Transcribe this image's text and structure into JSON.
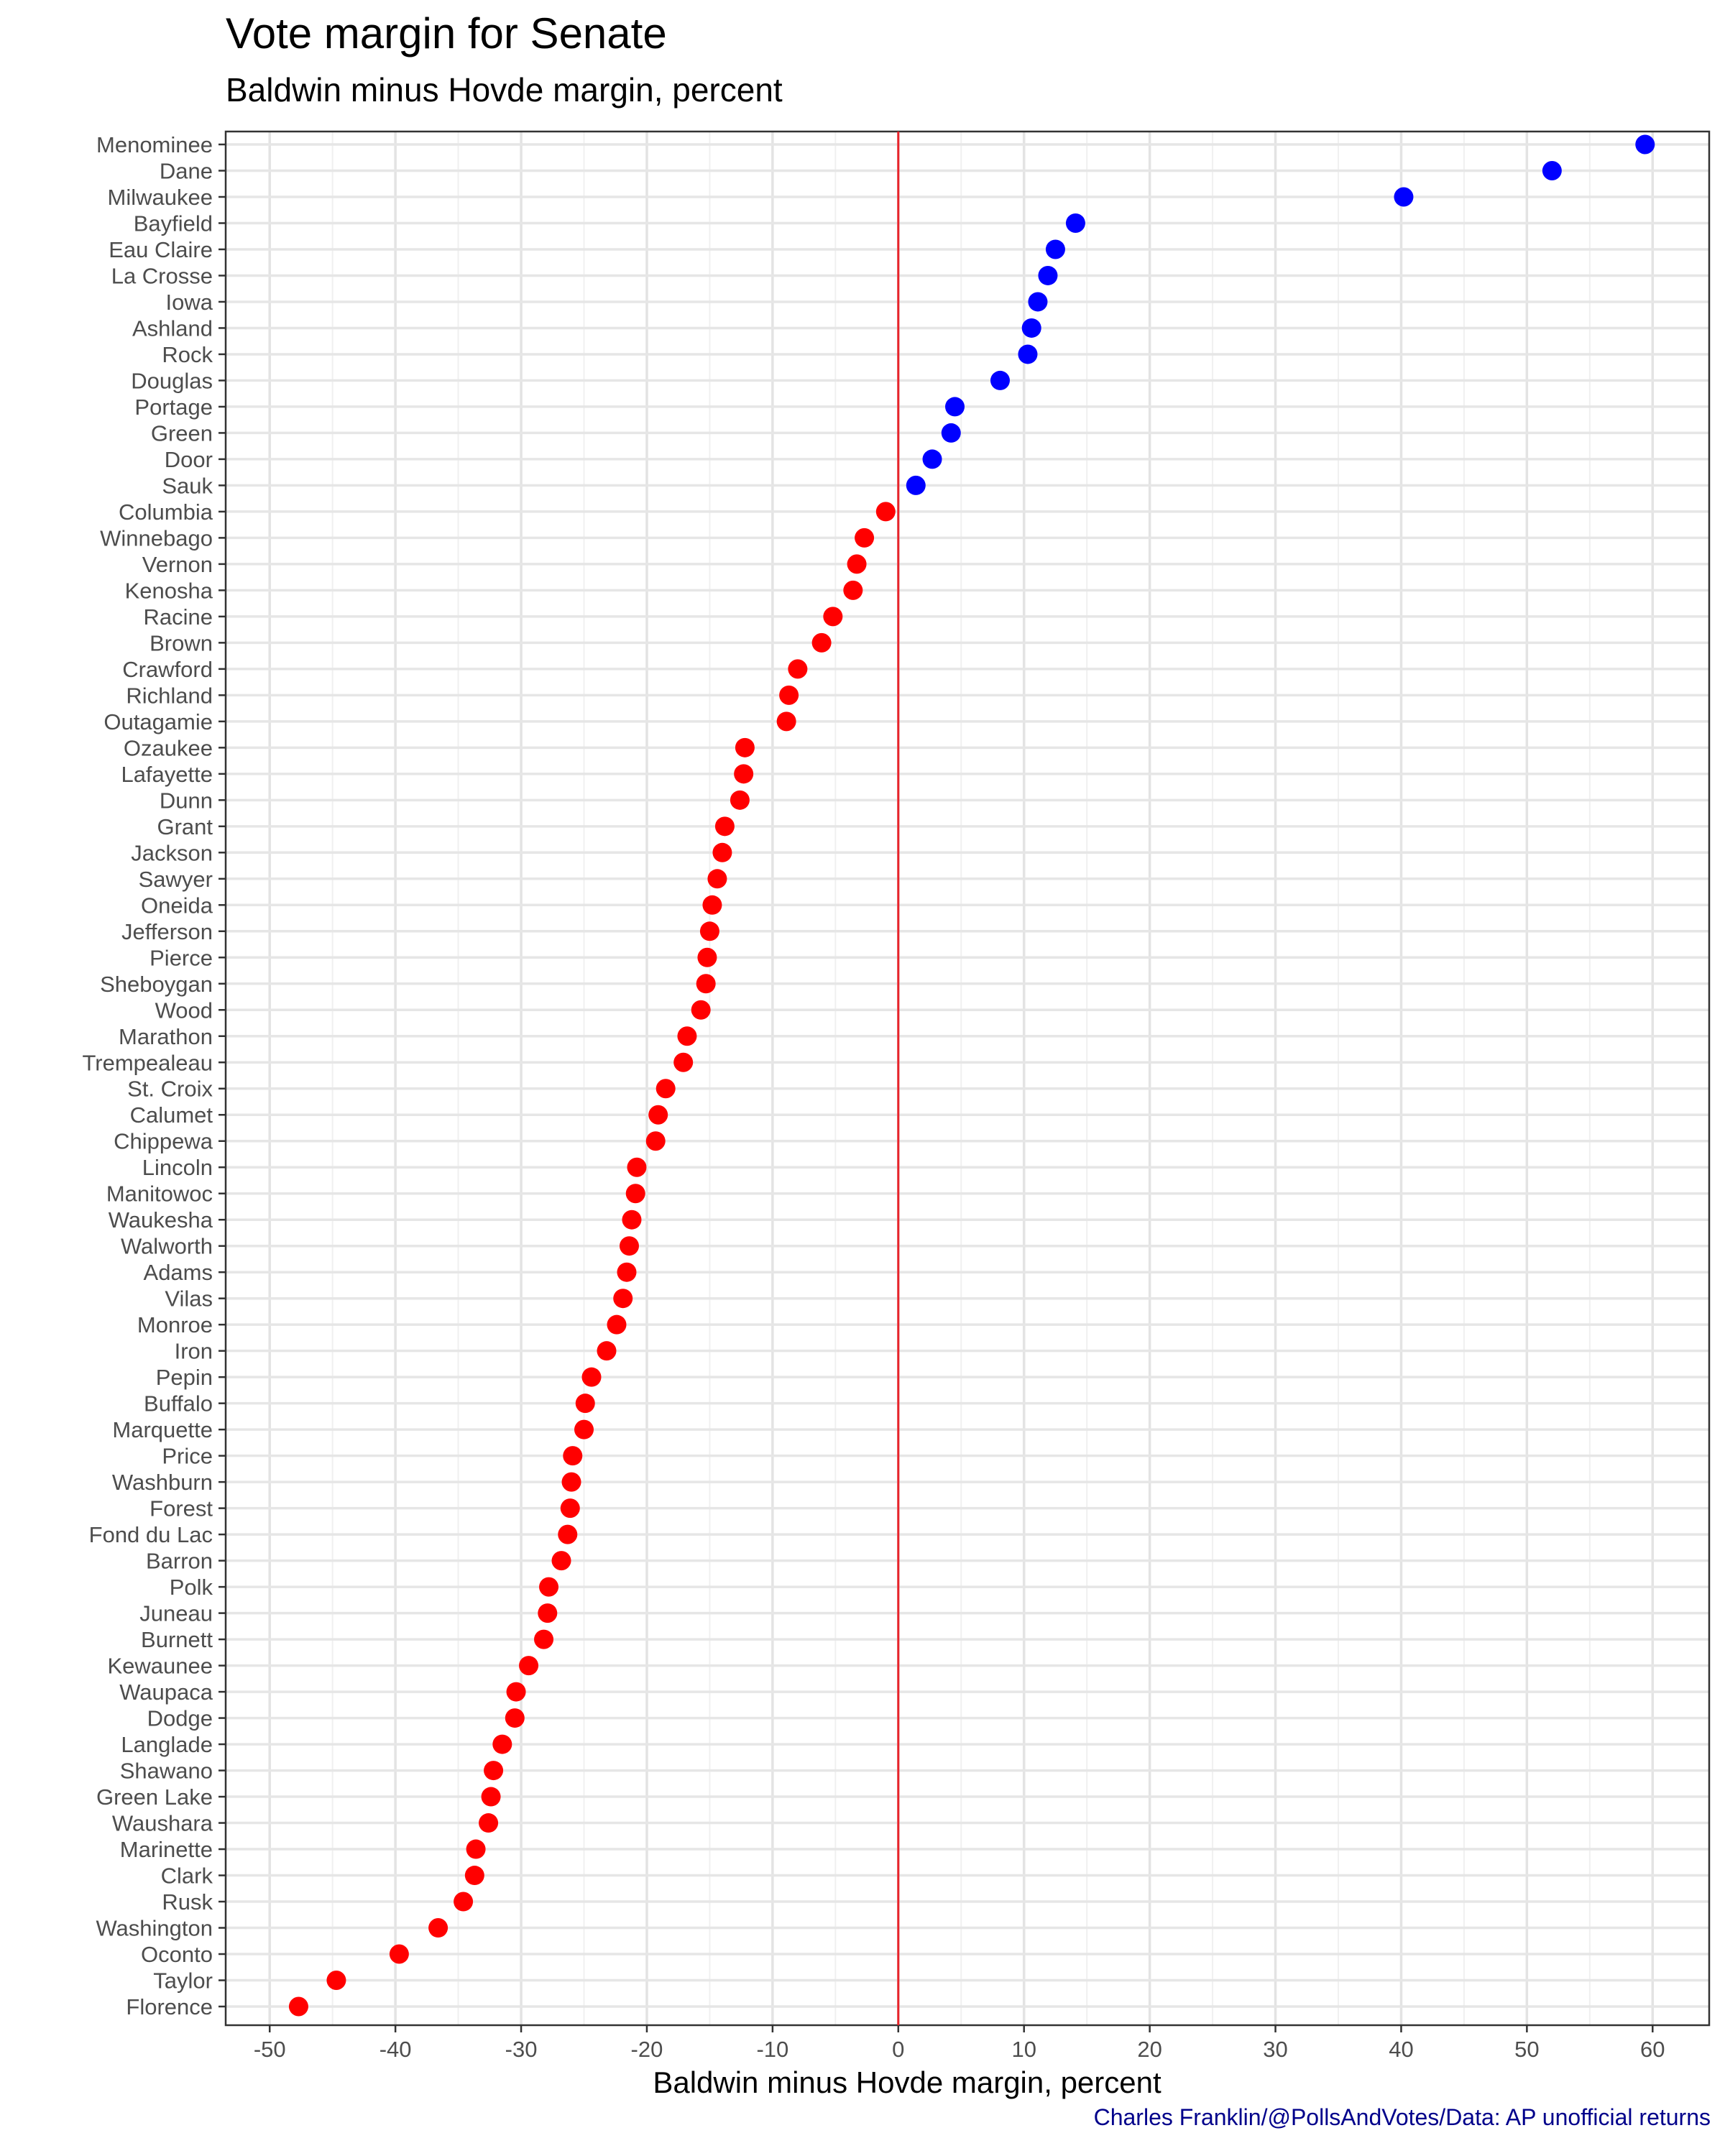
{
  "chart_data": {
    "type": "scatter",
    "title": "Vote margin for Senate",
    "subtitle": "Baldwin minus Hovde margin, percent",
    "xlabel": "Baldwin minus Hovde margin, percent",
    "ylabel": "",
    "caption": "Charles Franklin/@PollsAndVotes/Data: AP unofficial returns",
    "xlim": [
      -53.5,
      64.5
    ],
    "x_ticks": [
      -50,
      -40,
      -30,
      -20,
      -10,
      0,
      10,
      20,
      30,
      40,
      50,
      60
    ],
    "reference_line": {
      "x": 0,
      "color": "#e8232a"
    },
    "grid": true,
    "colors": {
      "positive": "#0000ff",
      "negative": "#ff0000"
    },
    "points": [
      {
        "county": "Menominee",
        "margin": 59.4
      },
      {
        "county": "Dane",
        "margin": 52.0
      },
      {
        "county": "Milwaukee",
        "margin": 40.2
      },
      {
        "county": "Bayfield",
        "margin": 14.1
      },
      {
        "county": "Eau Claire",
        "margin": 12.5
      },
      {
        "county": "La Crosse",
        "margin": 11.9
      },
      {
        "county": "Iowa",
        "margin": 11.1
      },
      {
        "county": "Ashland",
        "margin": 10.6
      },
      {
        "county": "Rock",
        "margin": 10.3
      },
      {
        "county": "Douglas",
        "margin": 8.1
      },
      {
        "county": "Portage",
        "margin": 4.5
      },
      {
        "county": "Green",
        "margin": 4.2
      },
      {
        "county": "Door",
        "margin": 2.7
      },
      {
        "county": "Sauk",
        "margin": 1.4
      },
      {
        "county": "Columbia",
        "margin": -1.0
      },
      {
        "county": "Winnebago",
        "margin": -2.7
      },
      {
        "county": "Vernon",
        "margin": -3.3
      },
      {
        "county": "Kenosha",
        "margin": -3.6
      },
      {
        "county": "Racine",
        "margin": -5.2
      },
      {
        "county": "Brown",
        "margin": -6.1
      },
      {
        "county": "Crawford",
        "margin": -8.0
      },
      {
        "county": "Richland",
        "margin": -8.7
      },
      {
        "county": "Outagamie",
        "margin": -8.9
      },
      {
        "county": "Ozaukee",
        "margin": -12.2
      },
      {
        "county": "Lafayette",
        "margin": -12.3
      },
      {
        "county": "Dunn",
        "margin": -12.6
      },
      {
        "county": "Grant",
        "margin": -13.8
      },
      {
        "county": "Jackson",
        "margin": -14.0
      },
      {
        "county": "Sawyer",
        "margin": -14.4
      },
      {
        "county": "Oneida",
        "margin": -14.8
      },
      {
        "county": "Jefferson",
        "margin": -15.0
      },
      {
        "county": "Pierce",
        "margin": -15.2
      },
      {
        "county": "Sheboygan",
        "margin": -15.3
      },
      {
        "county": "Wood",
        "margin": -15.7
      },
      {
        "county": "Marathon",
        "margin": -16.8
      },
      {
        "county": "Trempealeau",
        "margin": -17.1
      },
      {
        "county": "St. Croix",
        "margin": -18.5
      },
      {
        "county": "Calumet",
        "margin": -19.1
      },
      {
        "county": "Chippewa",
        "margin": -19.3
      },
      {
        "county": "Lincoln",
        "margin": -20.8
      },
      {
        "county": "Manitowoc",
        "margin": -20.9
      },
      {
        "county": "Waukesha",
        "margin": -21.2
      },
      {
        "county": "Walworth",
        "margin": -21.4
      },
      {
        "county": "Adams",
        "margin": -21.6
      },
      {
        "county": "Vilas",
        "margin": -21.9
      },
      {
        "county": "Monroe",
        "margin": -22.4
      },
      {
        "county": "Iron",
        "margin": -23.2
      },
      {
        "county": "Pepin",
        "margin": -24.4
      },
      {
        "county": "Buffalo",
        "margin": -24.9
      },
      {
        "county": "Marquette",
        "margin": -25.0
      },
      {
        "county": "Price",
        "margin": -25.9
      },
      {
        "county": "Washburn",
        "margin": -26.0
      },
      {
        "county": "Forest",
        "margin": -26.1
      },
      {
        "county": "Fond du Lac",
        "margin": -26.3
      },
      {
        "county": "Barron",
        "margin": -26.8
      },
      {
        "county": "Polk",
        "margin": -27.8
      },
      {
        "county": "Juneau",
        "margin": -27.9
      },
      {
        "county": "Burnett",
        "margin": -28.2
      },
      {
        "county": "Kewaunee",
        "margin": -29.4
      },
      {
        "county": "Waupaca",
        "margin": -30.4
      },
      {
        "county": "Dodge",
        "margin": -30.5
      },
      {
        "county": "Langlade",
        "margin": -31.5
      },
      {
        "county": "Shawano",
        "margin": -32.2
      },
      {
        "county": "Green Lake",
        "margin": -32.4
      },
      {
        "county": "Waushara",
        "margin": -32.6
      },
      {
        "county": "Marinette",
        "margin": -33.6
      },
      {
        "county": "Clark",
        "margin": -33.7
      },
      {
        "county": "Rusk",
        "margin": -34.6
      },
      {
        "county": "Washington",
        "margin": -36.6
      },
      {
        "county": "Oconto",
        "margin": -39.7
      },
      {
        "county": "Taylor",
        "margin": -44.7
      },
      {
        "county": "Florence",
        "margin": -47.7
      }
    ]
  }
}
